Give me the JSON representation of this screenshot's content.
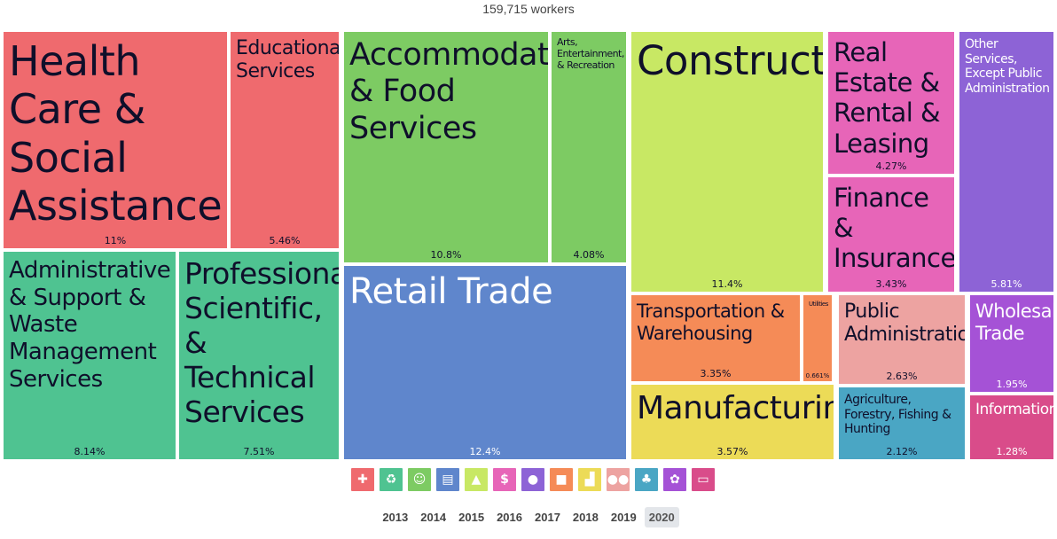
{
  "total_label": "159,715 workers",
  "chart_data": {
    "type": "treemap",
    "tiles": [
      {
        "name": "Health Care & Social Assistance",
        "pct_label": "11%",
        "value": 11,
        "color": "#ef6a6e"
      },
      {
        "name": "Educational Services",
        "pct_label": "5.46%",
        "value": 5.46,
        "color": "#ef6a6e"
      },
      {
        "name": "Administrative & Support & Waste Management Services",
        "pct_label": "8.14%",
        "value": 8.14,
        "color": "#4fc391"
      },
      {
        "name": "Professional, Scientific, & Technical Services",
        "pct_label": "7.51%",
        "value": 7.51,
        "color": "#4fc391"
      },
      {
        "name": "Accommodation & Food Services",
        "pct_label": "10.8%",
        "value": 10.8,
        "color": "#7dcb63"
      },
      {
        "name": "Arts, Entertainment, & Recreation",
        "pct_label": "4.08%",
        "value": 4.08,
        "color": "#7dcb63"
      },
      {
        "name": "Retail Trade",
        "pct_label": "12.4%",
        "value": 12.4,
        "color": "#5f86cc"
      },
      {
        "name": "Construction",
        "pct_label": "11.4%",
        "value": 11.4,
        "color": "#c8e864"
      },
      {
        "name": "Real Estate & Rental & Leasing",
        "pct_label": "4.27%",
        "value": 4.27,
        "color": "#e765b8"
      },
      {
        "name": "Finance & Insurance",
        "pct_label": "3.43%",
        "value": 3.43,
        "color": "#e765b8"
      },
      {
        "name": "Other Services, Except Public Administration",
        "pct_label": "5.81%",
        "value": 5.81,
        "color": "#8d63d6"
      },
      {
        "name": "Transportation & Warehousing",
        "pct_label": "3.35%",
        "value": 3.35,
        "color": "#f58b57"
      },
      {
        "name": "Utilities",
        "pct_label": "0.661%",
        "value": 0.661,
        "color": "#f58b57"
      },
      {
        "name": "Manufacturing",
        "pct_label": "3.57%",
        "value": 3.57,
        "color": "#ecdb57"
      },
      {
        "name": "Public Administration",
        "pct_label": "2.63%",
        "value": 2.63,
        "color": "#eda3a1"
      },
      {
        "name": "Agriculture, Forestry, Fishing & Hunting",
        "pct_label": "2.12%",
        "value": 2.12,
        "color": "#4aa6c4"
      },
      {
        "name": "Wholesale Trade",
        "pct_label": "1.95%",
        "value": 1.95,
        "color": "#a552d6"
      },
      {
        "name": "Information",
        "pct_label": "1.28%",
        "value": 1.28,
        "color": "#d94c8a"
      }
    ]
  },
  "icons": [
    {
      "name": "health-icon",
      "glyph": "✚",
      "color": "#ef6a6e"
    },
    {
      "name": "recycle-icon",
      "glyph": "♻",
      "color": "#4fc391"
    },
    {
      "name": "theater-masks-icon",
      "glyph": "☺",
      "color": "#7dcb63"
    },
    {
      "name": "store-icon",
      "glyph": "▤",
      "color": "#5f86cc"
    },
    {
      "name": "traffic-cone-icon",
      "glyph": "▲",
      "color": "#c8e864"
    },
    {
      "name": "money-house-icon",
      "glyph": "$",
      "color": "#e765b8"
    },
    {
      "name": "person-icon",
      "glyph": "●",
      "color": "#8d63d6"
    },
    {
      "name": "truck-icon",
      "glyph": "■",
      "color": "#f58b57"
    },
    {
      "name": "factory-icon",
      "glyph": "▟",
      "color": "#ecdb57"
    },
    {
      "name": "people-icon",
      "glyph": "●●",
      "color": "#eda3a1"
    },
    {
      "name": "wheat-icon",
      "glyph": "♣",
      "color": "#4aa6c4"
    },
    {
      "name": "flower-icon",
      "glyph": "✿",
      "color": "#a552d6"
    },
    {
      "name": "computer-icon",
      "glyph": "▭",
      "color": "#d94c8a"
    }
  ],
  "years": [
    "2013",
    "2014",
    "2015",
    "2016",
    "2017",
    "2018",
    "2019",
    "2020"
  ],
  "selected_year": "2020"
}
